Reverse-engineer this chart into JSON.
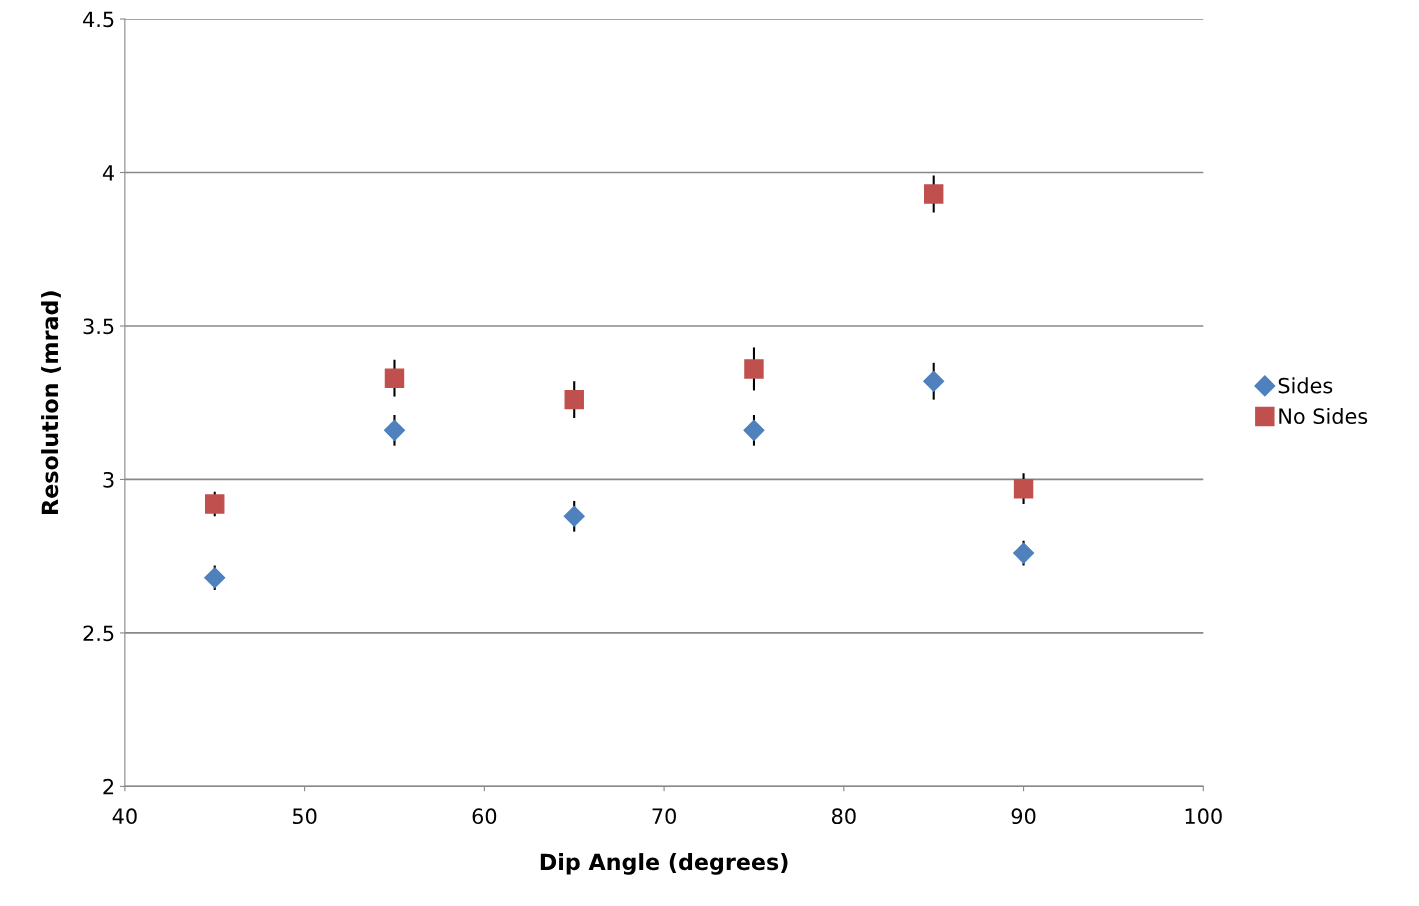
{
  "chart_data": {
    "type": "scatter",
    "xlabel": "Dip Angle (degrees)",
    "ylabel": "Resolution (mrad)",
    "x": [
      45,
      55,
      65,
      75,
      85,
      90
    ],
    "series": [
      {
        "name": "Sides",
        "color": "#4f81bd",
        "marker": "diamond",
        "values": [
          2.68,
          3.16,
          2.88,
          3.16,
          3.32,
          2.76
        ],
        "errors": [
          0.04,
          0.05,
          0.05,
          0.05,
          0.06,
          0.04
        ]
      },
      {
        "name": "No Sides",
        "color": "#c0504d",
        "marker": "square",
        "values": [
          2.92,
          3.33,
          3.26,
          3.36,
          3.93,
          2.97
        ],
        "errors": [
          0.04,
          0.06,
          0.06,
          0.07,
          0.06,
          0.05
        ]
      }
    ],
    "xlim": [
      40,
      100
    ],
    "xticks": [
      40,
      50,
      60,
      70,
      80,
      90,
      100
    ],
    "ylim": [
      2,
      4.5
    ],
    "yticks": [
      2,
      2.5,
      3,
      3.5,
      4,
      4.5
    ],
    "grid": "y",
    "legend": "right"
  }
}
